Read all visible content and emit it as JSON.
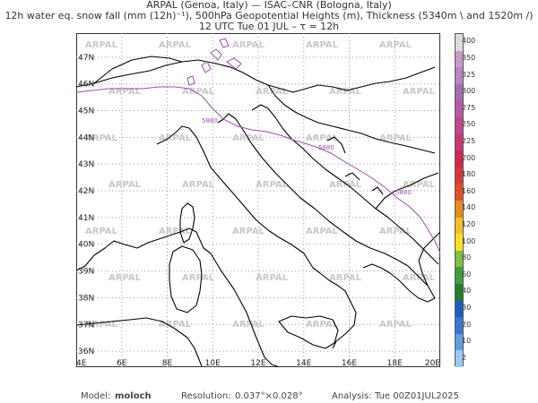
{
  "title": {
    "line1": "ARPAL (Genoa, Italy)  —  ISAC–CNR (Bologna, Italy)",
    "line2": "12h water eq. snow fall (mm (12h)⁻¹), 500hPa Geopotential Heights (m), Thickness (5340m \\ and 1520m /)",
    "line3": "12 UTC Tue 01 JUL  –  τ = 12h"
  },
  "map": {
    "lat_labels": [
      "47N",
      "46N",
      "45N",
      "44N",
      "43N",
      "42N",
      "41N",
      "40N",
      "39N",
      "38N",
      "37N",
      "36N"
    ],
    "lon_labels": [
      "4E",
      "6E",
      "8E",
      "10E",
      "12E",
      "14E",
      "16E",
      "18E",
      "20E"
    ],
    "lon_range": [
      4,
      20
    ],
    "lat_range": [
      35.4,
      47.9
    ],
    "watermark": "ARPAL",
    "contour_label": "5880",
    "contour_color": "#a04ab0",
    "coast_color": "#000000",
    "grid": true
  },
  "colorbar": {
    "labels": [
      "400",
      "350",
      "325",
      "300",
      "275",
      "250",
      "225",
      "200",
      "180",
      "160",
      "140",
      "120",
      "100",
      "80",
      "60",
      "40",
      "30",
      "20",
      "10",
      "2"
    ],
    "colors": [
      "#dcdcdc",
      "#c39cc8",
      "#b784c4",
      "#a66cb8",
      "#b45aa8",
      "#c0488c",
      "#c83870",
      "#d02850",
      "#d83838",
      "#e05028",
      "#e88c20",
      "#f0c020",
      "#f8e020",
      "#80c040",
      "#40a040",
      "#208030",
      "#1860c0",
      "#3878d0",
      "#60a0e0",
      "#9cc8f0"
    ]
  },
  "footer": {
    "model_label": "Model:",
    "model_value": "moloch",
    "resolution_label": "Resolution:",
    "resolution_value": "0.037°×0.028°",
    "analysis_label": "Analysis:",
    "analysis_value": "Tue 00Z01JUL2025"
  }
}
